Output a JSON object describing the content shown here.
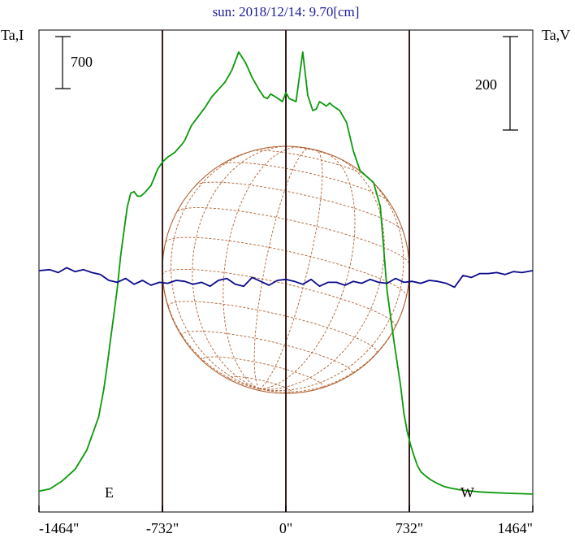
{
  "chart_data": {
    "type": "line",
    "title": "sun: 2018/12/14: 9.70[cm]",
    "left_axis_label": "Ta,I",
    "right_axis_label": "Ta,V",
    "left_scale_bar": "700",
    "right_scale_bar": "200",
    "limb_labels": {
      "east": "E",
      "west": "W"
    },
    "x_tick_labels": [
      "-1464\"",
      "-732\"",
      "0\"",
      "732\"",
      "1464\""
    ],
    "x_ticks": [
      -1464,
      -732,
      0,
      732,
      1464
    ],
    "xlim": [
      -1464,
      1464
    ],
    "vertical_markers": [
      -732,
      0,
      732
    ],
    "grid": false,
    "colors": {
      "title": "#1a1a9c",
      "intensity": "#0a9a0a",
      "polarization": "#0a0a8c",
      "disk": "#b06030",
      "markers": "#3a1a1a",
      "axis": "#000000"
    },
    "series": [
      {
        "role": "intensity",
        "axis": "left",
        "values_relative": true,
        "x": [
          -1464,
          -1400,
          -1330,
          -1250,
          -1180,
          -1110,
          -1080,
          -1060,
          -1040,
          -1020,
          -1000,
          -980,
          -960,
          -940,
          -920,
          -900,
          -880,
          -860,
          -840,
          -800,
          -760,
          -730,
          -700,
          -660,
          -620,
          -600,
          -560,
          -520,
          -480,
          -440,
          -400,
          -360,
          -320,
          -280,
          -240,
          -200,
          -160,
          -130,
          -110,
          -90,
          -60,
          -20,
          0,
          20,
          60,
          100,
          130,
          160,
          180,
          200,
          240,
          260,
          280,
          320,
          360,
          400,
          440,
          480,
          520,
          560,
          600,
          640,
          680,
          700,
          720,
          740,
          760,
          780,
          800,
          830,
          860,
          900,
          940,
          980,
          1020,
          1080,
          1150,
          1230,
          1320,
          1400,
          1464
        ],
        "y": [
          25,
          40,
          90,
          170,
          300,
          520,
          700,
          860,
          1030,
          1200,
          1370,
          1590,
          1760,
          1920,
          2010,
          2020,
          1990,
          1990,
          2010,
          2060,
          2170,
          2220,
          2250,
          2280,
          2330,
          2360,
          2460,
          2520,
          2580,
          2650,
          2700,
          2750,
          2830,
          2950,
          2880,
          2780,
          2700,
          2650,
          2640,
          2670,
          2650,
          2620,
          2680,
          2640,
          2620,
          2950,
          2660,
          2560,
          2570,
          2620,
          2590,
          2610,
          2590,
          2560,
          2480,
          2290,
          2160,
          2120,
          2080,
          1920,
          1360,
          1030,
          730,
          540,
          420,
          330,
          260,
          195,
          155,
          125,
          100,
          75,
          55,
          45,
          36,
          28,
          20,
          15,
          11,
          8,
          6
        ]
      },
      {
        "role": "circular polarization",
        "axis": "right",
        "values_relative": true,
        "x": [
          -1464,
          -1400,
          -1350,
          -1300,
          -1250,
          -1200,
          -1150,
          -1100,
          -1050,
          -1000,
          -950,
          -900,
          -850,
          -800,
          -750,
          -700,
          -650,
          -600,
          -550,
          -500,
          -450,
          -400,
          -350,
          -300,
          -250,
          -200,
          -150,
          -100,
          -50,
          0,
          50,
          100,
          150,
          200,
          250,
          300,
          350,
          400,
          450,
          500,
          550,
          600,
          650,
          700,
          750,
          800,
          850,
          900,
          950,
          1000,
          1050,
          1100,
          1150,
          1200,
          1250,
          1300,
          1350,
          1400,
          1464
        ],
        "y": [
          0,
          1,
          -2,
          3,
          -1,
          1,
          -2,
          -4,
          -10,
          -12,
          -8,
          -14,
          -10,
          -15,
          -12,
          -13,
          -10,
          -11,
          -14,
          -12,
          -16,
          -10,
          -8,
          -14,
          -16,
          -7,
          -11,
          -15,
          -10,
          -9,
          -11,
          -14,
          -9,
          -16,
          -12,
          -12,
          -15,
          -11,
          -13,
          -9,
          -12,
          -13,
          -8,
          -12,
          -11,
          -13,
          -10,
          -11,
          -13,
          -17,
          -5,
          -7,
          -3,
          -3,
          -2,
          -4,
          -1,
          -2,
          0
        ]
      }
    ]
  }
}
